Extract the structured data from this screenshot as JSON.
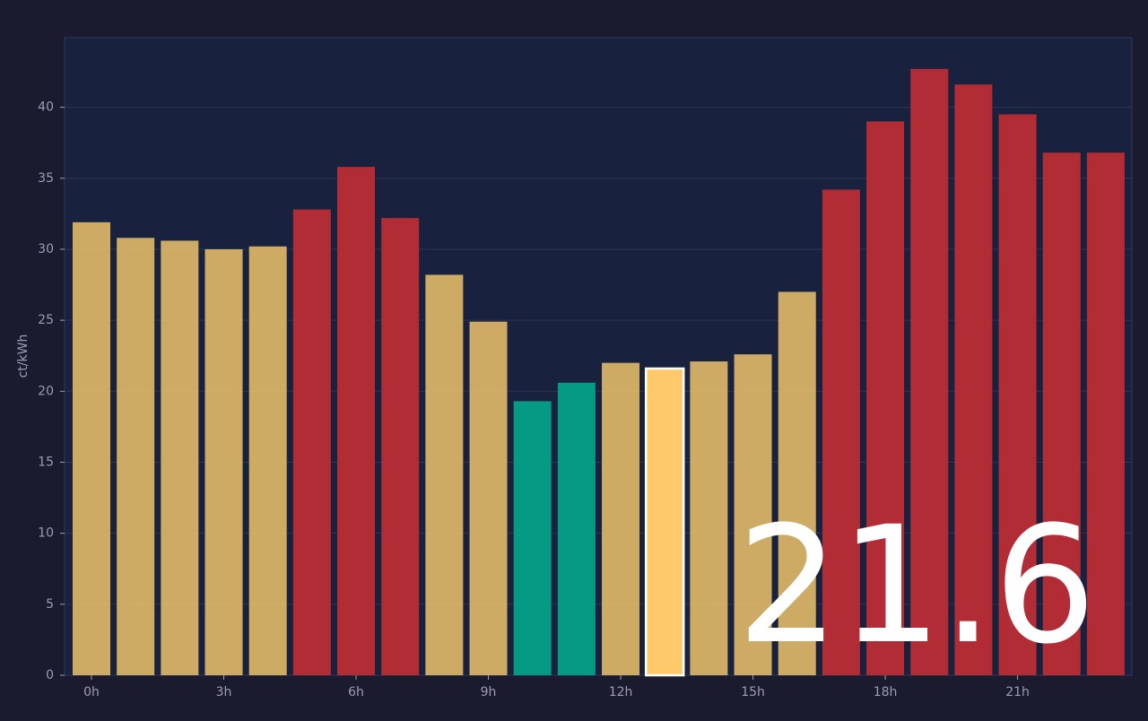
{
  "chart_data": {
    "type": "bar",
    "y_label": "ct/kWh",
    "categories": [
      "0h",
      null,
      null,
      "3h",
      null,
      null,
      "6h",
      null,
      null,
      "9h",
      null,
      null,
      "12h",
      null,
      null,
      "15h",
      null,
      null,
      "18h",
      null,
      null,
      "21h",
      null,
      null
    ],
    "values": [
      31.9,
      30.8,
      30.6,
      30.0,
      30.2,
      32.8,
      35.8,
      32.2,
      28.2,
      24.9,
      19.3,
      20.6,
      22.0,
      21.6,
      22.1,
      22.6,
      27.0,
      34.2,
      39.0,
      42.7,
      41.6,
      39.5,
      36.8,
      36.8
    ],
    "colors": [
      "#d8b366",
      "#d8b366",
      "#d8b366",
      "#d8b366",
      "#d8b366",
      "#b92d34",
      "#b92d34",
      "#b92d34",
      "#d8b366",
      "#d8b366",
      "#04a187",
      "#04a187",
      "#d8b366",
      "#fdc96b",
      "#d8b366",
      "#d8b366",
      "#d8b366",
      "#b92d34",
      "#b92d34",
      "#b92d34",
      "#b92d34",
      "#b92d34",
      "#b92d34",
      "#b92d34"
    ],
    "highlight": 13,
    "ylim": [
      0,
      44.9
    ],
    "yticks": [
      0,
      5,
      10,
      15,
      20,
      25,
      30,
      35,
      40
    ],
    "grid": true
  }
}
